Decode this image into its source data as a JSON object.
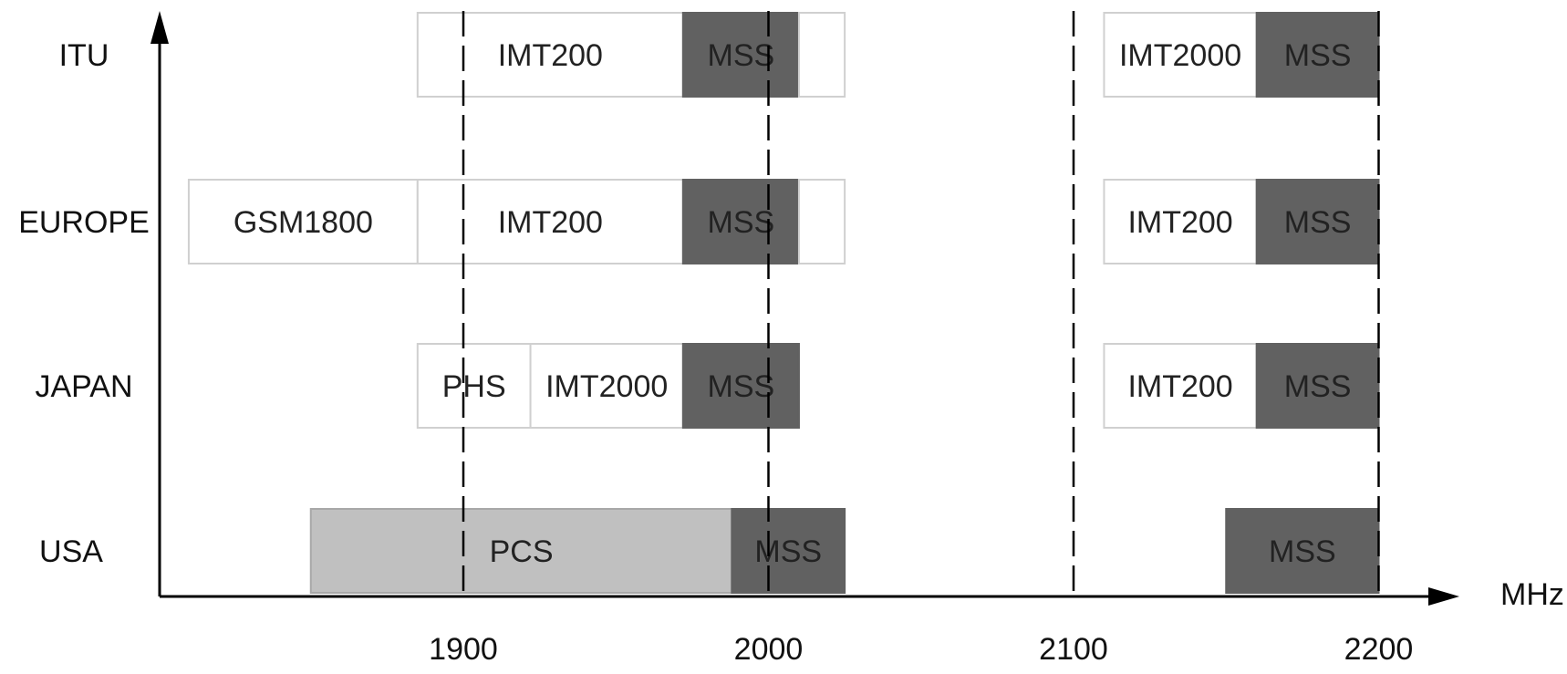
{
  "chart_data": {
    "type": "bar",
    "orientation": "horizontal-ranges",
    "x_unit": "MHz",
    "xlim": [
      1800,
      2225
    ],
    "xticks": [
      1900,
      2000,
      2100,
      2200
    ],
    "gridlines": [
      1900,
      2000,
      2100,
      2200
    ],
    "regions": [
      "ITU",
      "EUROPE",
      "JAPAN",
      "USA"
    ],
    "bands": [
      {
        "region": "ITU",
        "label": "IMT200",
        "start": 1885,
        "end": 1972,
        "kind": "open"
      },
      {
        "region": "ITU",
        "label": "MSS",
        "start": 1972,
        "end": 2010,
        "kind": "mss"
      },
      {
        "region": "ITU",
        "label": "",
        "start": 2010,
        "end": 2025,
        "kind": "open"
      },
      {
        "region": "ITU",
        "label": "IMT2000",
        "start": 2110,
        "end": 2160,
        "kind": "open"
      },
      {
        "region": "ITU",
        "label": "MSS",
        "start": 2160,
        "end": 2200,
        "kind": "mss"
      },
      {
        "region": "EUROPE",
        "label": "GSM1800",
        "start": 1810,
        "end": 1885,
        "kind": "open"
      },
      {
        "region": "EUROPE",
        "label": "IMT200",
        "start": 1885,
        "end": 1972,
        "kind": "open"
      },
      {
        "region": "EUROPE",
        "label": "MSS",
        "start": 1972,
        "end": 2010,
        "kind": "mss"
      },
      {
        "region": "EUROPE",
        "label": "",
        "start": 2010,
        "end": 2025,
        "kind": "open"
      },
      {
        "region": "EUROPE",
        "label": "IMT200",
        "start": 2110,
        "end": 2160,
        "kind": "open"
      },
      {
        "region": "EUROPE",
        "label": "MSS",
        "start": 2160,
        "end": 2200,
        "kind": "mss"
      },
      {
        "region": "JAPAN",
        "label": "PHS",
        "start": 1885,
        "end": 1922,
        "kind": "open"
      },
      {
        "region": "JAPAN",
        "label": "IMT2000",
        "start": 1922,
        "end": 1972,
        "kind": "open"
      },
      {
        "region": "JAPAN",
        "label": "MSS",
        "start": 1972,
        "end": 2010,
        "kind": "mss"
      },
      {
        "region": "JAPAN",
        "label": "IMT200",
        "start": 2110,
        "end": 2160,
        "kind": "open"
      },
      {
        "region": "JAPAN",
        "label": "MSS",
        "start": 2160,
        "end": 2200,
        "kind": "mss"
      },
      {
        "region": "USA",
        "label": "PCS",
        "start": 1850,
        "end": 1988,
        "kind": "pcs"
      },
      {
        "region": "USA",
        "label": "MSS",
        "start": 1988,
        "end": 2025,
        "kind": "mss"
      },
      {
        "region": "USA",
        "label": "MSS",
        "start": 2150,
        "end": 2200,
        "kind": "mss"
      }
    ],
    "colors": {
      "open_fill": "#ffffff",
      "open_stroke": "#d0d0d0",
      "mss_fill": "#616161",
      "pcs_fill": "#c0c0c0",
      "axis": "#000000",
      "text": "#111111"
    },
    "grid": "dashed-vertical",
    "legend": "none"
  }
}
